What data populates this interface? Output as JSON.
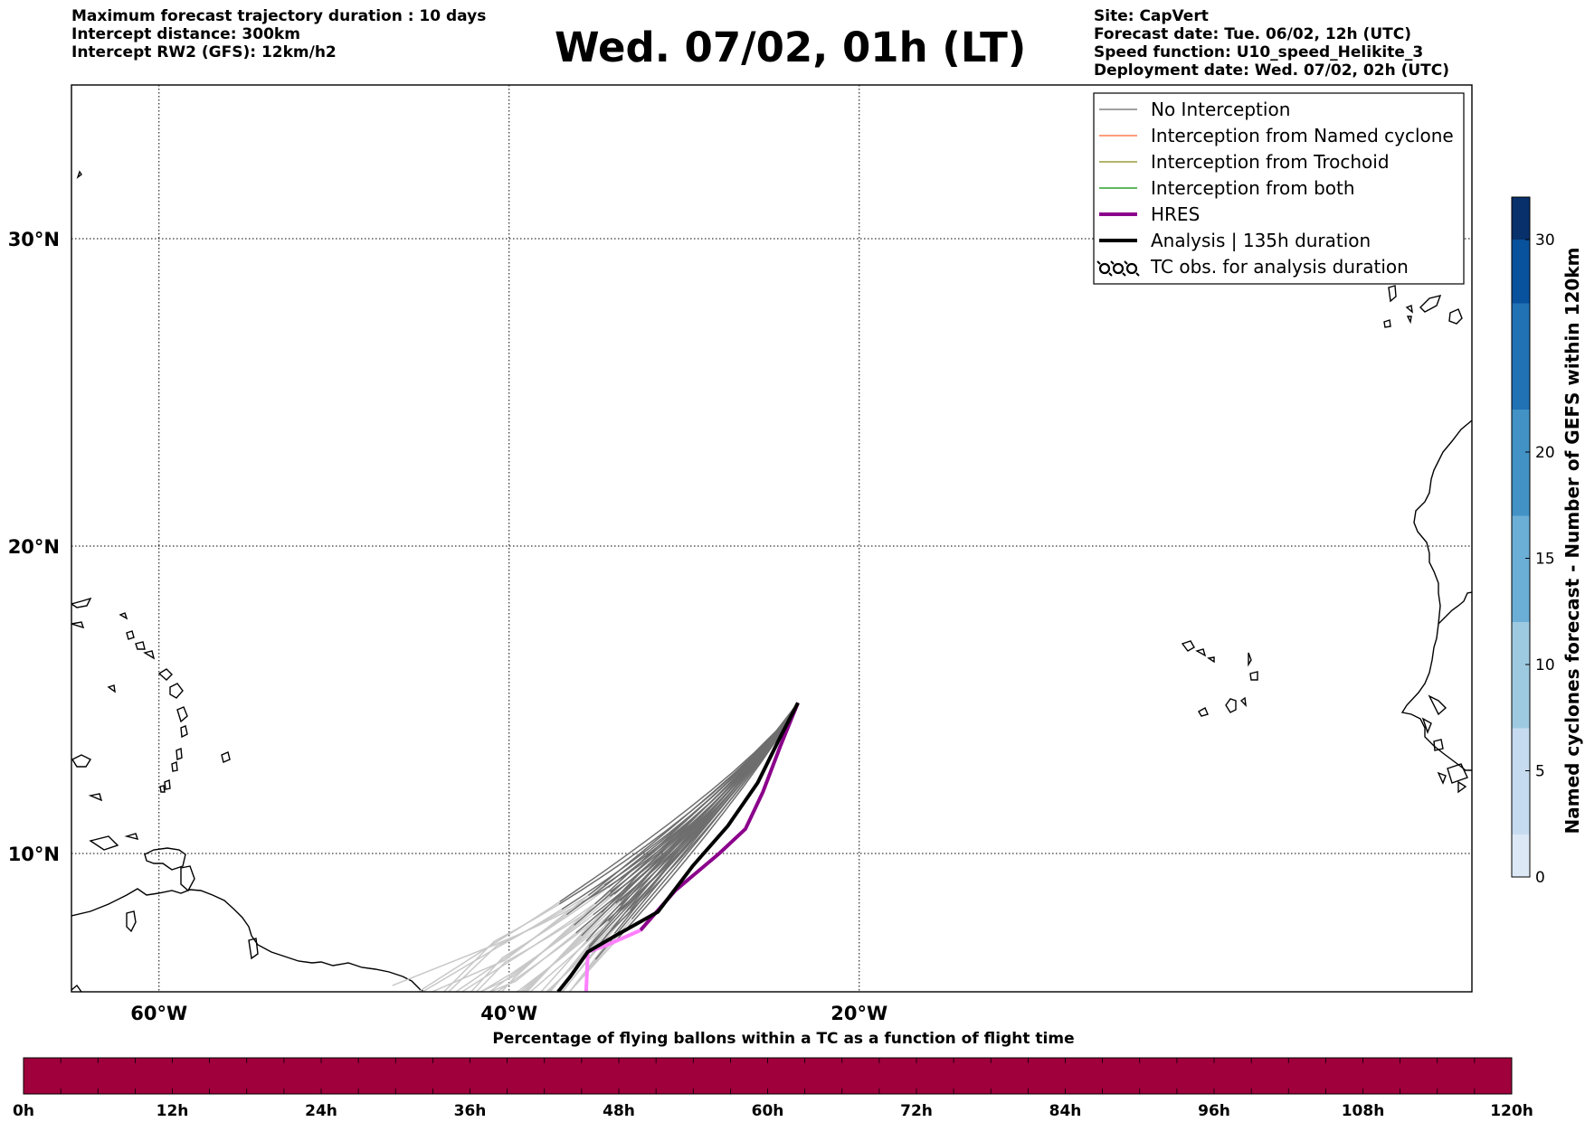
{
  "header": {
    "left": [
      "Maximum forecast trajectory duration : 10 days",
      "Intercept distance: 300km",
      "Intercept RW2 (GFS):  12km/h2"
    ],
    "title": "Wed. 07/02, 01h (LT)",
    "right": [
      "Site: CapVert",
      "Forecast date: Tue. 06/02, 12h (UTC)",
      "Speed function: U10_speed_Helikite_3",
      "Deployment date: Wed. 07/02, 02h (UTC)"
    ]
  },
  "map": {
    "lon_range": [
      -65,
      15
    ],
    "lat_range": [
      5.5,
      35
    ],
    "lon_ticks": [
      {
        "value": -60,
        "label": "60°W"
      },
      {
        "value": -40,
        "label": "40°W"
      },
      {
        "value": -20,
        "label": "20°W"
      }
    ],
    "lat_ticks": [
      {
        "value": 30,
        "label": "30°N"
      },
      {
        "value": 20,
        "label": "20°N"
      },
      {
        "value": 10,
        "label": "10°N"
      }
    ],
    "grid": "dotted",
    "site": {
      "name": "CapVert",
      "lon": -23.5,
      "lat": 14.9
    }
  },
  "legend": {
    "placement": "top-right",
    "items": [
      {
        "label": "No Interception",
        "color": "#808080",
        "style": "thin-line"
      },
      {
        "label": "Interception from Named cyclone",
        "color": "#ff7f50",
        "style": "thin-line"
      },
      {
        "label": "Interception from Trochoid",
        "color": "#9b9b3c",
        "style": "thin-line"
      },
      {
        "label": "Interception from both",
        "color": "#2ca02c",
        "style": "thin-line"
      },
      {
        "label": "HRES",
        "color": "#8b008b",
        "style": "thick-line"
      },
      {
        "label": "Analysis | 135h duration",
        "color": "#000000",
        "style": "thick-line"
      },
      {
        "label": "TC obs. for analysis duration",
        "color": "#000000",
        "style": "cyclone-symbols"
      }
    ]
  },
  "colorbar": {
    "title": "Named cyclones forecast - Number of GEFS within 120km",
    "ticks": [
      "0",
      "5",
      "10",
      "15",
      "20",
      "30"
    ],
    "colors": [
      "#dce8f5",
      "#c6dbef",
      "#9ecae1",
      "#6baed6",
      "#4292c6",
      "#2171b5",
      "#08519c",
      "#08306b"
    ]
  },
  "bottom_bar": {
    "title": "Percentage of flying ballons within a TC as a function of flight time",
    "ticks": [
      "0h",
      "12h",
      "24h",
      "36h",
      "48h",
      "60h",
      "72h",
      "84h",
      "96h",
      "108h",
      "120h"
    ],
    "fill_color": "#a0003c"
  },
  "chart_data": {
    "type": "line",
    "title": "Wed. 07/02, 01h (LT)",
    "xlabel": "",
    "ylabel": "",
    "series": [
      {
        "name": "HRES",
        "values": [
          {
            "lon": -23.5,
            "lat": 14.9
          },
          {
            "lon": -24.5,
            "lat": 13.5
          },
          {
            "lon": -25.5,
            "lat": 12.0
          },
          {
            "lon": -26.5,
            "lat": 10.8
          },
          {
            "lon": -28.0,
            "lat": 10.0
          },
          {
            "lon": -30.5,
            "lat": 8.8
          },
          {
            "lon": -32.5,
            "lat": 7.5
          },
          {
            "lon": -34.5,
            "lat": 7.0
          },
          {
            "lon": -35.5,
            "lat": 6.8
          }
        ]
      },
      {
        "name": "Analysis | 135h duration",
        "values": [
          {
            "lon": -23.5,
            "lat": 14.9
          },
          {
            "lon": -24.5,
            "lat": 13.8
          },
          {
            "lon": -25.8,
            "lat": 12.3
          },
          {
            "lon": -27.5,
            "lat": 10.9
          },
          {
            "lon": -29.5,
            "lat": 9.6
          },
          {
            "lon": -31.5,
            "lat": 8.1
          },
          {
            "lon": -34.0,
            "lat": 7.3
          },
          {
            "lon": -35.5,
            "lat": 6.8
          },
          {
            "lon": -36.5,
            "lat": 6.0
          },
          {
            "lon": -37.2,
            "lat": 5.5
          }
        ]
      }
    ]
  }
}
